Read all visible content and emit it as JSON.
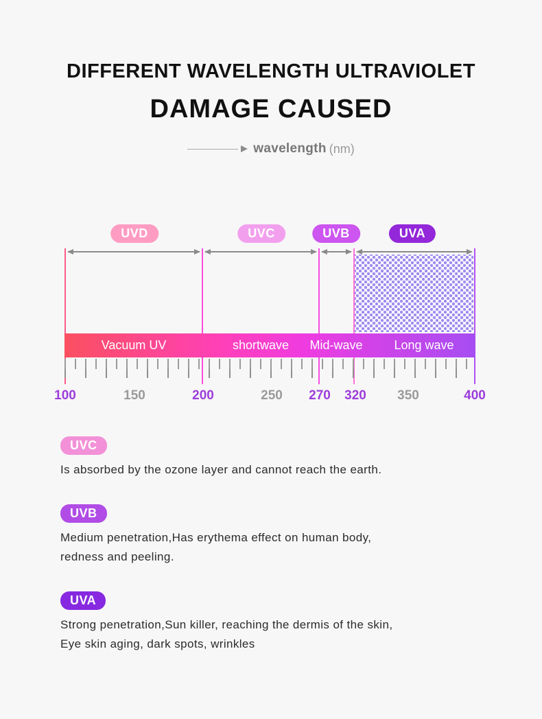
{
  "colors": {
    "accent_purple": "#9c3ddb",
    "muted_gray": "#9a9a9a",
    "bar_gradient": [
      "#fa5060",
      "#ff40b8",
      "#ef3ce0",
      "#a64df2"
    ],
    "dot_pattern": "#9f8cef"
  },
  "header": {
    "title_line1": "DIFFERENT WAVELENGTH ULTRAVIOLET",
    "title_line2": "DAMAGE CAUSED",
    "axis_word": "wavelength",
    "axis_unit": "(nm)"
  },
  "spectrum": {
    "band_badges": [
      {
        "label": "UVD",
        "style": "background:#ff9cc2"
      },
      {
        "label": "UVC",
        "style": "background:#f2a0ee"
      },
      {
        "label": "UVB",
        "style": "background:#cd55f0"
      },
      {
        "label": "UVA",
        "style": "background:#9327d9"
      }
    ],
    "bar_segments": [
      {
        "label": "Vacuum UV",
        "range_nm": [
          100,
          200
        ]
      },
      {
        "label": "shortwave",
        "range_nm": [
          200,
          270
        ]
      },
      {
        "label": "Mid-wave",
        "range_nm": [
          270,
          320
        ]
      },
      {
        "label": "Long wave",
        "range_nm": [
          320,
          400
        ]
      }
    ],
    "scale_ticks": [
      {
        "label": "100",
        "accent": true
      },
      {
        "label": "150",
        "accent": false
      },
      {
        "label": "200",
        "accent": true
      },
      {
        "label": "250",
        "accent": false
      },
      {
        "label": "270",
        "accent": true
      },
      {
        "label": "320",
        "accent": true
      },
      {
        "label": "350",
        "accent": false
      },
      {
        "label": "400",
        "accent": true
      }
    ]
  },
  "sections": [
    {
      "badge": "UVC",
      "style": "background:#f291d8",
      "lines": [
        "Is absorbed by the ozone layer and cannot reach the earth."
      ]
    },
    {
      "badge": "UVB",
      "style": "background:#b14ce6",
      "lines": [
        "Medium penetration,Has erythema effect on human body,",
        "redness and peeling."
      ]
    },
    {
      "badge": "UVA",
      "style": "background:#8629e0",
      "lines": [
        "Strong penetration,Sun killer, reaching the dermis of the skin,",
        "Eye skin aging, dark spots, wrinkles"
      ]
    }
  ]
}
